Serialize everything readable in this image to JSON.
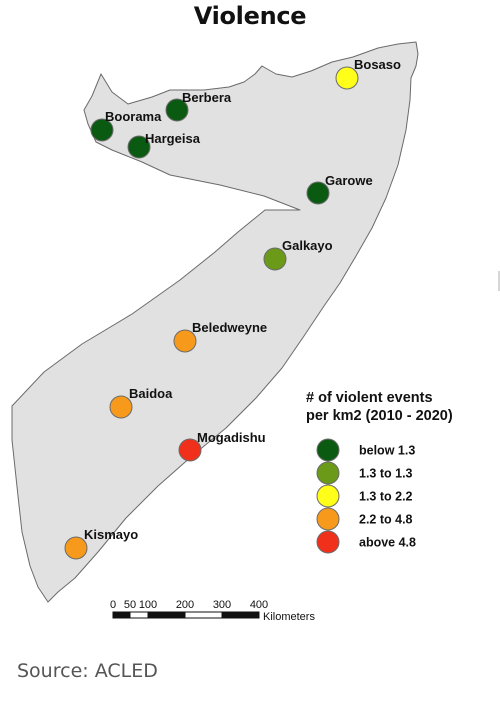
{
  "title": "Violence",
  "source": "Source: ACLED",
  "legend": {
    "title_line1": "# of violent events",
    "title_line2": "per km2 (2010 - 2020)",
    "items": [
      {
        "label": "below 1.3",
        "color": "#0b5a12"
      },
      {
        "label": "1.3 to 1.3",
        "color": "#6a9a18"
      },
      {
        "label": "1.3 to 2.2",
        "color": "#ffff1a"
      },
      {
        "label": "2.2 to 4.8",
        "color": "#f79a1c"
      },
      {
        "label": "above 4.8",
        "color": "#f0301b"
      }
    ]
  },
  "cities": [
    {
      "name": "Bosaso",
      "category": 2
    },
    {
      "name": "Berbera",
      "category": 0
    },
    {
      "name": "Boorama",
      "category": 0
    },
    {
      "name": "Hargeisa",
      "category": 0
    },
    {
      "name": "Garowe",
      "category": 0
    },
    {
      "name": "Galkayo",
      "category": 1
    },
    {
      "name": "Beledweyne",
      "category": 3
    },
    {
      "name": "Baidoa",
      "category": 3
    },
    {
      "name": "Mogadishu",
      "category": 4
    },
    {
      "name": "Kismayo",
      "category": 3
    }
  ],
  "scale_bar": {
    "ticks": [
      "0",
      "50",
      "100",
      "200",
      "300",
      "400"
    ],
    "unit": "Kilometers"
  },
  "map_fill": "#e1e1e1"
}
